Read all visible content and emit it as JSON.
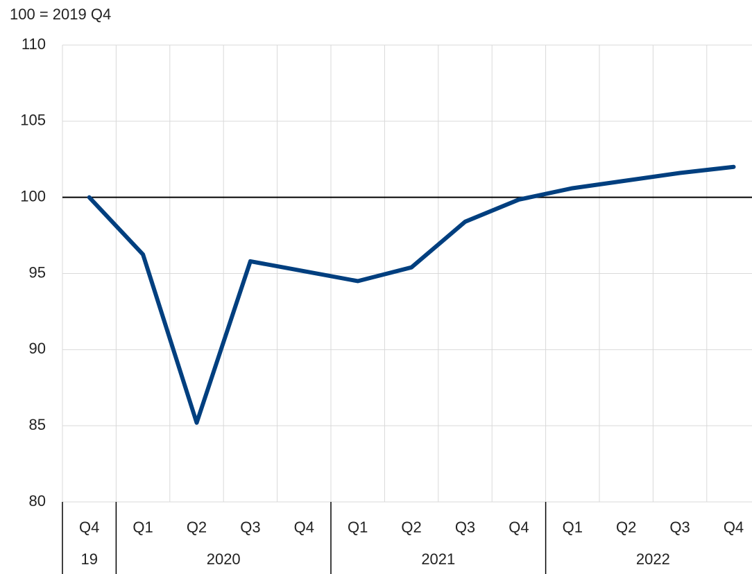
{
  "chart_data": {
    "type": "line",
    "subtitle": "100 = 2019 Q4",
    "categories": [
      "Q4",
      "Q1",
      "Q2",
      "Q3",
      "Q4",
      "Q1",
      "Q2",
      "Q3",
      "Q4",
      "Q1",
      "Q2",
      "Q3",
      "Q4"
    ],
    "years": [
      "19",
      "2020",
      "2020",
      "2020",
      "2020",
      "2021",
      "2021",
      "2021",
      "2021",
      "2022",
      "2022",
      "2022",
      "2022"
    ],
    "values": [
      100,
      96.25,
      85.2,
      95.8,
      95.15,
      94.5,
      95.4,
      98.4,
      99.85,
      100.6,
      101.1,
      101.6,
      102.0
    ],
    "color": "#003f7f",
    "reference_line": 100,
    "ylim": [
      80,
      110
    ],
    "yticks": [
      80,
      85,
      90,
      95,
      100,
      105,
      110
    ],
    "grid": true
  }
}
